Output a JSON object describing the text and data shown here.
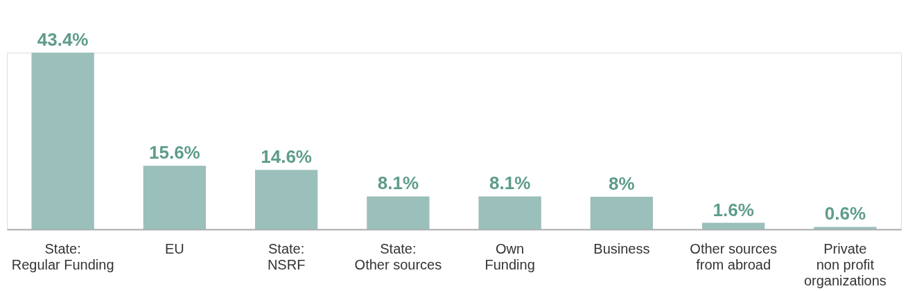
{
  "chart_data": {
    "type": "bar",
    "categories": [
      "State:\nRegular Funding",
      "EU",
      "State:\nNSRF",
      "State:\nOther sources",
      "Own\nFunding",
      "Business",
      "Other sources\nfrom abroad",
      "Private\nnon profit\norganizations"
    ],
    "values": [
      43.4,
      15.6,
      14.6,
      8.1,
      8.1,
      8,
      1.6,
      0.6
    ],
    "value_labels": [
      "43.4%",
      "15.6%",
      "14.6%",
      "8.1%",
      "8.1%",
      "8%",
      "1.6%",
      "0.6%"
    ],
    "color": "#9bbfbb",
    "data_labels": false
  }
}
